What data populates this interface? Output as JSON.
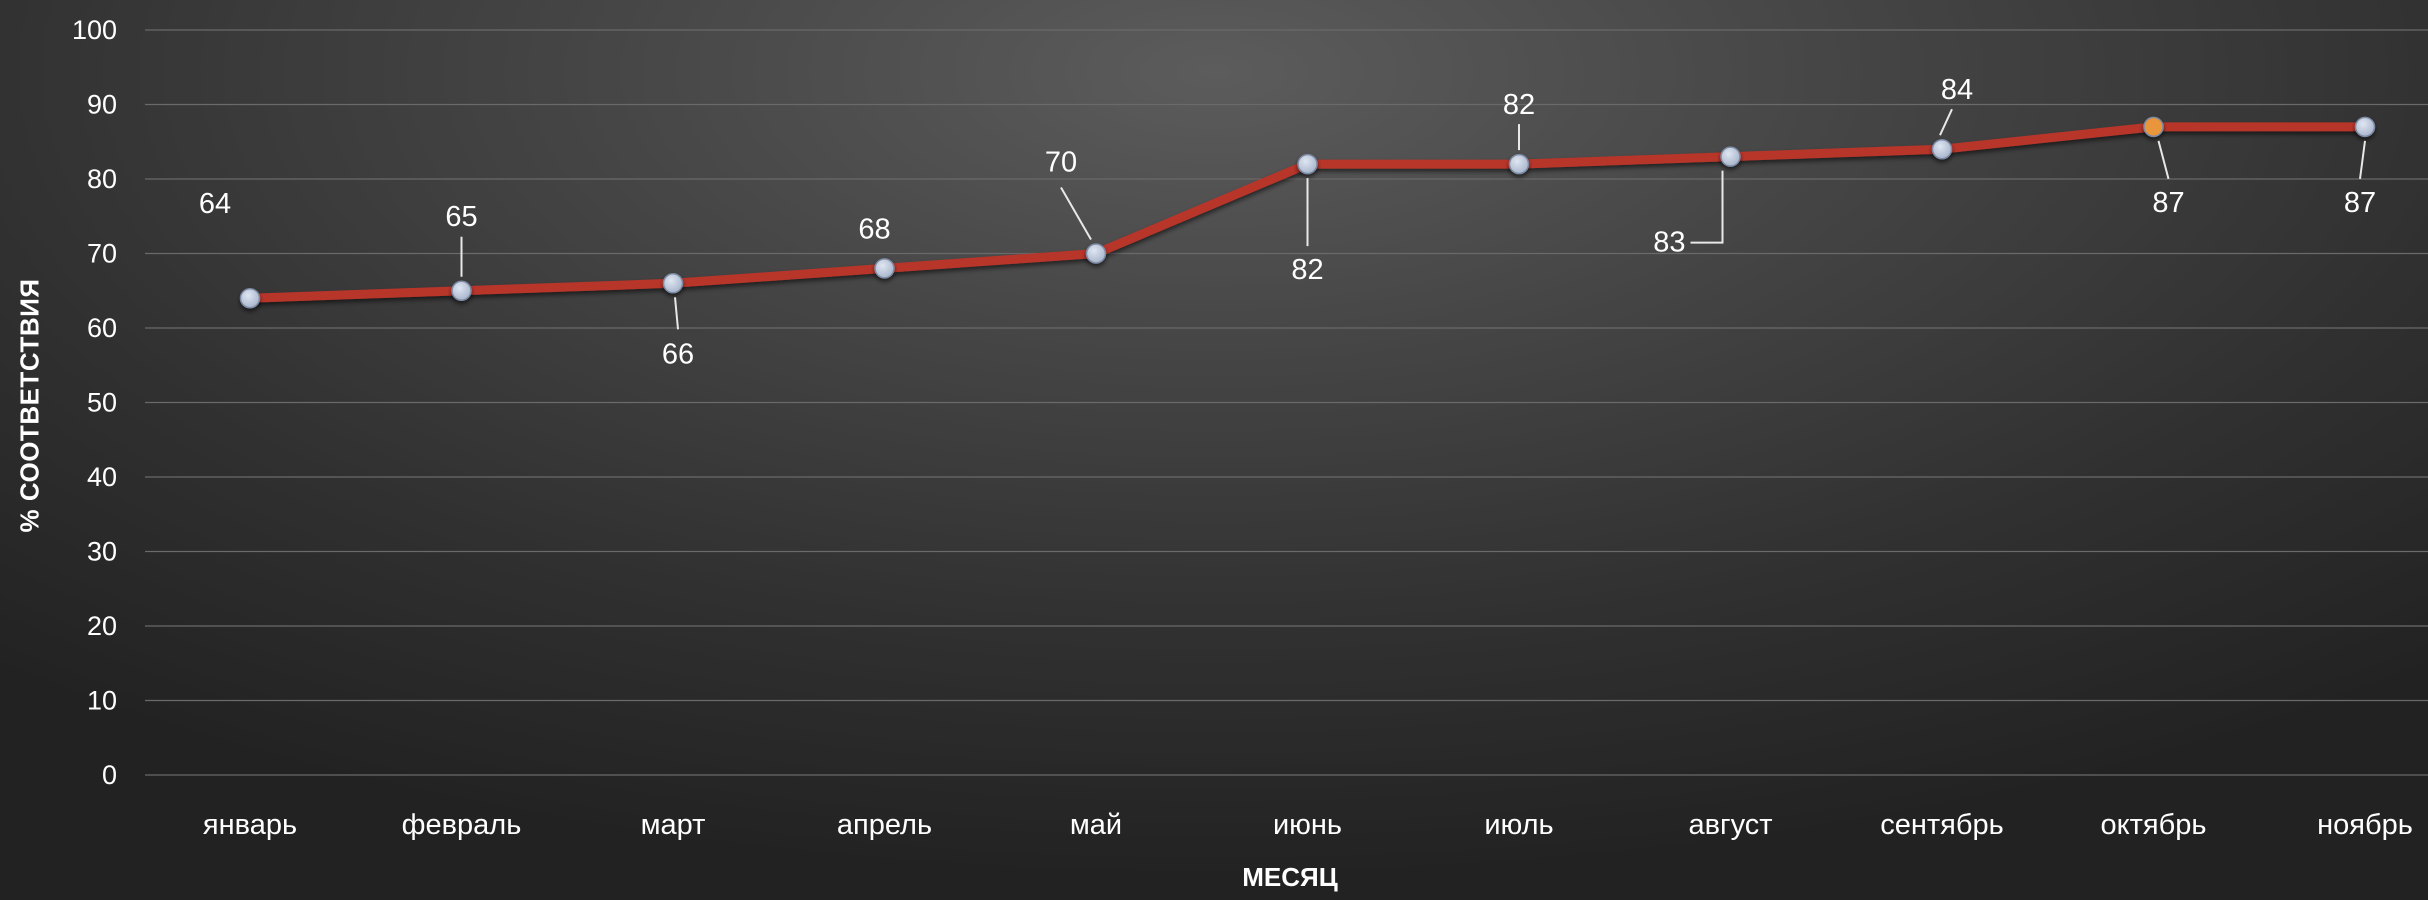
{
  "chart_data": {
    "type": "line",
    "xlabel": "МЕСЯЦ",
    "ylabel": "% СООТВЕТСТВИЯ",
    "ylim": [
      0,
      100
    ],
    "yticks": [
      0,
      10,
      20,
      30,
      40,
      50,
      60,
      70,
      80,
      90,
      100
    ],
    "grid": true,
    "categories": [
      "январь",
      "февраль",
      "март",
      "апрель",
      "май",
      "июнь",
      "июль",
      "август",
      "сентябрь",
      "октябрь",
      "ноябрь"
    ],
    "series": [
      {
        "values": [
          64,
          65,
          66,
          68,
          70,
          82,
          82,
          83,
          84,
          87,
          87
        ]
      }
    ],
    "data_labels": [
      "64",
      "65",
      "66",
      "68",
      "70",
      "82",
      "82",
      "83",
      "84",
      "87",
      "87"
    ],
    "colors": {
      "line": "#b8352a",
      "marker": "#a9b6cc",
      "highlight_marker": "#e8953a",
      "text": "#ffffff",
      "grid": "#6a6a6a"
    }
  }
}
